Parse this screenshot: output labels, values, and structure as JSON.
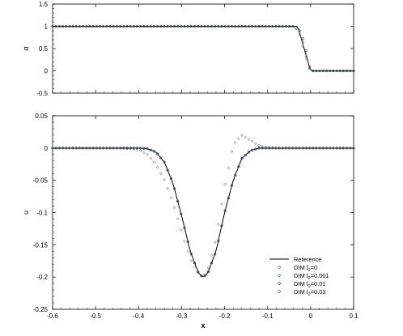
{
  "chart_data": [
    {
      "type": "scatter",
      "ylabel": "α",
      "xlim": [
        -0.6,
        0.1
      ],
      "ylim": [
        -0.5,
        1.5
      ],
      "yticks": [
        "-0.5",
        "0",
        "0.5",
        "1",
        "1.5"
      ],
      "show_x_tick_labels": false,
      "series": [
        {
          "id": "ref",
          "style": "line",
          "color": "#000000",
          "x": [
            -0.6,
            -0.03,
            -0.015,
            0.0,
            0.1
          ],
          "y": [
            1.0,
            1.0,
            0.5,
            0.0,
            0.0
          ]
        },
        {
          "id": "dim0",
          "style": "marker",
          "color": "#ff3333",
          "x": [
            -0.6,
            -0.035,
            -0.022,
            -0.012,
            -0.005,
            0.0,
            0.1
          ],
          "y": [
            1.0,
            1.0,
            0.85,
            0.55,
            0.2,
            0.0,
            0.0
          ]
        },
        {
          "id": "dim0001",
          "style": "marker",
          "color": "#1a9a1a",
          "x": [
            -0.6,
            -0.035,
            -0.024,
            -0.014,
            -0.006,
            0.0,
            0.1
          ],
          "y": [
            1.0,
            1.0,
            0.9,
            0.5,
            0.15,
            0.0,
            0.0
          ]
        },
        {
          "id": "dim001",
          "style": "marker",
          "color": "#2233cc",
          "x": [
            -0.6,
            -0.035,
            -0.022,
            -0.012,
            -0.005,
            0.0,
            0.1
          ],
          "y": [
            1.0,
            1.0,
            0.85,
            0.55,
            0.2,
            0.0,
            0.0
          ]
        },
        {
          "id": "dim003",
          "style": "marker",
          "color": "#555555",
          "x": [
            -0.6,
            -0.04,
            -0.028,
            -0.018,
            -0.008,
            0.0,
            0.1
          ],
          "y": [
            1.0,
            1.0,
            0.9,
            0.55,
            0.2,
            0.0,
            0.0
          ]
        }
      ]
    },
    {
      "type": "scatter",
      "xlabel": "x",
      "ylabel": "u",
      "xlim": [
        -0.6,
        0.1
      ],
      "ylim": [
        -0.25,
        0.05
      ],
      "xticks": [
        "-0.6",
        "-0.5",
        "-0.4",
        "-0.3",
        "-0.2",
        "-0.1",
        "0",
        "0.1"
      ],
      "yticks": [
        "-0.25",
        "-0.2",
        "-0.15",
        "-0.1",
        "-0.05",
        "0",
        "0.05"
      ],
      "legend": "bottom-right",
      "series": [
        {
          "id": "ref",
          "name": "Reference",
          "style": "line",
          "color": "#000000",
          "x": [
            -0.6,
            -0.4,
            -0.38,
            -0.36,
            -0.34,
            -0.32,
            -0.3,
            -0.28,
            -0.26,
            -0.25,
            -0.24,
            -0.22,
            -0.2,
            -0.18,
            -0.16,
            -0.14,
            -0.12,
            0.1
          ],
          "y": [
            0.0,
            0.0,
            -0.001,
            -0.006,
            -0.022,
            -0.055,
            -0.105,
            -0.16,
            -0.195,
            -0.2,
            -0.195,
            -0.16,
            -0.1,
            -0.05,
            -0.016,
            -0.004,
            0.0,
            0.0
          ]
        },
        {
          "id": "dim0",
          "name": "DIM l",
          "sub": "0",
          "name_suffix": "=0",
          "style": "marker",
          "color": "#ff3333",
          "x": [
            -0.6,
            -0.4,
            -0.38,
            -0.36,
            -0.34,
            -0.32,
            -0.3,
            -0.28,
            -0.26,
            -0.25,
            -0.24,
            -0.22,
            -0.2,
            -0.18,
            -0.16,
            -0.14,
            -0.12,
            0.1
          ],
          "y": [
            0.0,
            0.0,
            -0.001,
            -0.006,
            -0.022,
            -0.055,
            -0.105,
            -0.16,
            -0.195,
            -0.2,
            -0.195,
            -0.16,
            -0.1,
            -0.05,
            -0.016,
            -0.004,
            0.0,
            0.0
          ]
        },
        {
          "id": "dim0001",
          "name": "DIM l",
          "sub": "0",
          "name_suffix": "=0.001",
          "style": "marker",
          "color": "#1a9a1a",
          "x": [
            -0.6,
            -0.4,
            -0.38,
            -0.36,
            -0.34,
            -0.32,
            -0.3,
            -0.28,
            -0.26,
            -0.25,
            -0.24,
            -0.22,
            -0.2,
            -0.18,
            -0.16,
            -0.14,
            -0.12,
            0.1
          ],
          "y": [
            0.0,
            0.0,
            -0.001,
            -0.006,
            -0.022,
            -0.055,
            -0.105,
            -0.16,
            -0.195,
            -0.2,
            -0.195,
            -0.16,
            -0.1,
            -0.05,
            -0.016,
            -0.004,
            0.0,
            0.0
          ]
        },
        {
          "id": "dim001",
          "name": "DIM l",
          "sub": "0",
          "name_suffix": "=0.01",
          "style": "marker",
          "color": "#2233cc",
          "x": [
            -0.6,
            -0.4,
            -0.38,
            -0.36,
            -0.34,
            -0.32,
            -0.3,
            -0.28,
            -0.26,
            -0.25,
            -0.24,
            -0.22,
            -0.2,
            -0.18,
            -0.16,
            -0.14,
            -0.12,
            0.1
          ],
          "y": [
            0.0,
            0.0,
            -0.001,
            -0.006,
            -0.022,
            -0.055,
            -0.105,
            -0.16,
            -0.195,
            -0.2,
            -0.195,
            -0.16,
            -0.1,
            -0.05,
            -0.016,
            -0.004,
            0.0,
            0.0
          ]
        },
        {
          "id": "dim003",
          "name": "DIM l",
          "sub": "0",
          "name_suffix": "=0.03",
          "style": "marker",
          "color": "#555555",
          "x": [
            -0.6,
            -0.45,
            -0.42,
            -0.4,
            -0.38,
            -0.36,
            -0.34,
            -0.32,
            -0.3,
            -0.28,
            -0.26,
            -0.25,
            -0.24,
            -0.22,
            -0.2,
            -0.18,
            -0.16,
            -0.14,
            -0.12,
            -0.1,
            -0.08,
            0.1
          ],
          "y": [
            0.0,
            0.0,
            -0.001,
            -0.003,
            -0.01,
            -0.025,
            -0.05,
            -0.085,
            -0.13,
            -0.172,
            -0.196,
            -0.2,
            -0.19,
            -0.14,
            -0.06,
            0.005,
            0.02,
            0.012,
            0.004,
            0.001,
            0.0,
            0.0
          ]
        }
      ]
    }
  ]
}
